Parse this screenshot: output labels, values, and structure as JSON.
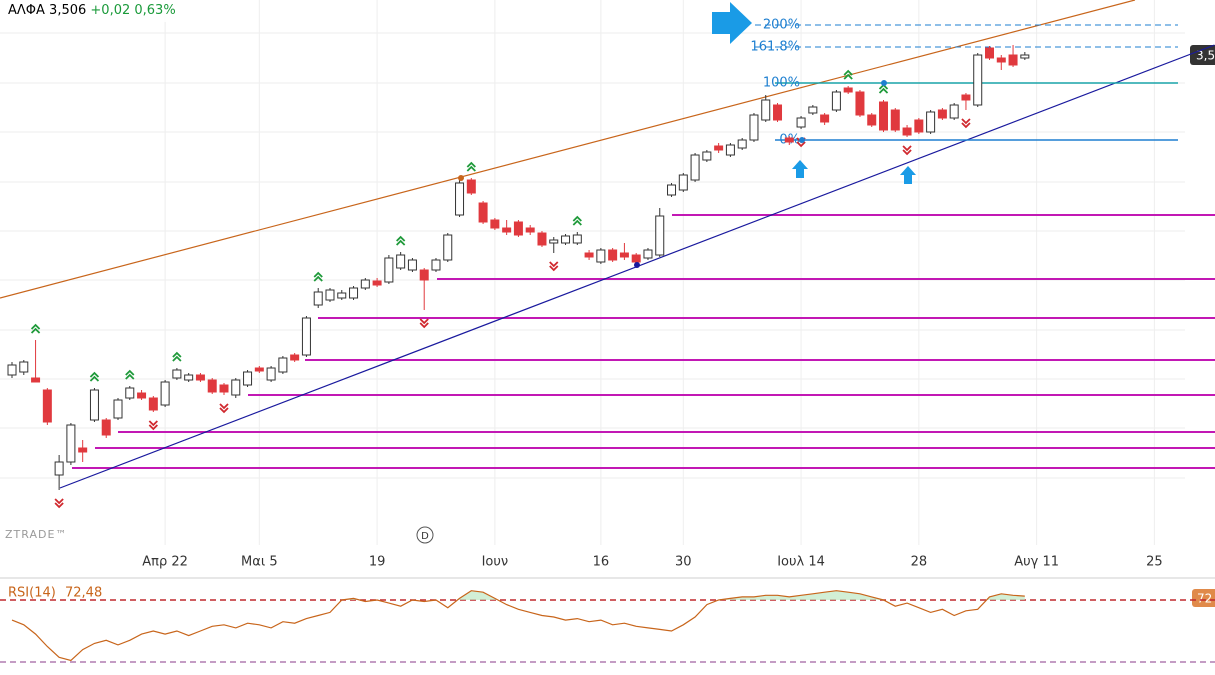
{
  "header": {
    "symbol": "ΑΛΦΑ 3,506",
    "change": "+0,02 0,63%"
  },
  "chart_data": {
    "type": "candlestick",
    "ylim": [
      2.556,
      3.616
    ],
    "xlim": [
      -1.02,
      99.6
    ],
    "up_color": "#ffffff",
    "down_color": "#e0393e",
    "open": [
      2.866,
      2.872,
      2.86,
      2.836,
      2.666,
      2.692,
      2.72,
      2.776,
      2.776,
      2.78,
      2.82,
      2.83,
      2.82,
      2.806,
      2.86,
      2.856,
      2.866,
      2.856,
      2.846,
      2.826,
      2.846,
      2.88,
      2.856,
      2.872,
      2.906,
      2.906,
      3.006,
      3.016,
      3.02,
      3.02,
      3.04,
      3.054,
      3.052,
      3.08,
      3.076,
      3.076,
      3.076,
      3.096,
      3.186,
      3.256,
      3.21,
      3.176,
      3.16,
      3.172,
      3.16,
      3.15,
      3.13,
      3.13,
      3.13,
      3.11,
      3.092,
      3.116,
      3.11,
      3.106,
      3.1,
      3.106,
      3.226,
      3.236,
      3.256,
      3.296,
      3.324,
      3.306,
      3.32,
      3.336,
      3.376,
      3.406,
      3.34,
      3.362,
      3.39,
      3.386,
      3.396,
      3.44,
      3.432,
      3.386,
      3.412,
      3.396,
      3.36,
      3.376,
      3.352,
      3.396,
      3.38,
      3.426,
      3.406,
      3.52,
      3.5,
      3.506,
      3.5
    ],
    "high": [
      2.892,
      2.896,
      2.936,
      2.84,
      2.706,
      2.77,
      2.736,
      2.84,
      2.78,
      2.82,
      2.844,
      2.836,
      2.824,
      2.856,
      2.88,
      2.87,
      2.87,
      2.86,
      2.85,
      2.86,
      2.876,
      2.884,
      2.884,
      2.904,
      2.91,
      2.984,
      3.04,
      3.04,
      3.036,
      3.044,
      3.06,
      3.06,
      3.106,
      3.112,
      3.1,
      3.08,
      3.1,
      3.15,
      3.256,
      3.26,
      3.214,
      3.18,
      3.176,
      3.176,
      3.166,
      3.154,
      3.142,
      3.148,
      3.152,
      3.116,
      3.12,
      3.12,
      3.13,
      3.11,
      3.12,
      3.2,
      3.25,
      3.27,
      3.31,
      3.316,
      3.33,
      3.33,
      3.34,
      3.39,
      3.426,
      3.41,
      3.344,
      3.384,
      3.406,
      3.39,
      3.436,
      3.444,
      3.436,
      3.39,
      3.416,
      3.4,
      3.366,
      3.38,
      3.396,
      3.4,
      3.41,
      3.43,
      3.51,
      3.524,
      3.506,
      3.526,
      3.512
    ],
    "low": [
      2.86,
      2.866,
      2.852,
      2.766,
      2.636,
      2.686,
      2.692,
      2.772,
      2.74,
      2.776,
      2.816,
      2.816,
      2.792,
      2.802,
      2.856,
      2.852,
      2.852,
      2.828,
      2.826,
      2.82,
      2.842,
      2.87,
      2.852,
      2.868,
      2.892,
      2.902,
      3.0,
      3.012,
      3.016,
      3.016,
      3.036,
      3.042,
      3.048,
      3.076,
      3.072,
      2.996,
      3.072,
      3.092,
      3.182,
      3.226,
      3.168,
      3.156,
      3.146,
      3.142,
      3.146,
      3.122,
      3.11,
      3.126,
      3.126,
      3.096,
      3.088,
      3.092,
      3.096,
      3.086,
      3.096,
      3.102,
      3.222,
      3.232,
      3.252,
      3.292,
      3.31,
      3.302,
      3.316,
      3.332,
      3.372,
      3.372,
      3.326,
      3.358,
      3.386,
      3.366,
      3.392,
      3.428,
      3.382,
      3.362,
      3.352,
      3.352,
      3.342,
      3.348,
      3.348,
      3.376,
      3.376,
      3.396,
      3.402,
      3.496,
      3.476,
      3.482,
      3.496
    ],
    "close": [
      2.886,
      2.892,
      2.852,
      2.772,
      2.692,
      2.766,
      2.712,
      2.836,
      2.746,
      2.816,
      2.84,
      2.82,
      2.796,
      2.852,
      2.876,
      2.866,
      2.856,
      2.832,
      2.832,
      2.856,
      2.872,
      2.874,
      2.88,
      2.9,
      2.896,
      2.98,
      3.032,
      3.036,
      3.03,
      3.04,
      3.056,
      3.046,
      3.1,
      3.106,
      3.096,
      3.056,
      3.096,
      3.146,
      3.25,
      3.23,
      3.172,
      3.16,
      3.152,
      3.146,
      3.152,
      3.126,
      3.136,
      3.144,
      3.146,
      3.102,
      3.116,
      3.096,
      3.102,
      3.092,
      3.116,
      3.184,
      3.246,
      3.266,
      3.306,
      3.312,
      3.316,
      3.326,
      3.336,
      3.386,
      3.416,
      3.376,
      3.332,
      3.38,
      3.402,
      3.372,
      3.432,
      3.432,
      3.386,
      3.366,
      3.356,
      3.356,
      3.346,
      3.352,
      3.392,
      3.38,
      3.406,
      3.416,
      3.506,
      3.5,
      3.492,
      3.486,
      3.506
    ],
    "xticks": [
      {
        "value": 13,
        "label": "Απρ 22"
      },
      {
        "value": 21,
        "label": "Μαι 5"
      },
      {
        "value": 31,
        "label": "19"
      },
      {
        "value": 41,
        "label": "Ιουν"
      },
      {
        "value": 50,
        "label": "16"
      },
      {
        "value": 57,
        "label": "30"
      },
      {
        "value": 67,
        "label": "Ιουλ 14"
      },
      {
        "value": 77,
        "label": "28"
      },
      {
        "value": 87,
        "label": "Αυγ 11"
      },
      {
        "value": 97,
        "label": "25"
      }
    ],
    "last_price_label": "3,5",
    "fib_levels": [
      {
        "label": "200%",
        "price": 3.566,
        "dashed": true
      },
      {
        "label": "161.8%",
        "price": 3.522,
        "dashed": true
      },
      {
        "label": "100%",
        "price": 3.45,
        "dashed": false
      },
      {
        "label": "0%",
        "price": 3.336,
        "dashed": false
      }
    ],
    "support_levels": [
      3.186,
      3.058,
      2.98,
      2.896,
      2.826,
      2.752,
      2.72,
      2.68
    ],
    "support_color": "#c218b4",
    "trendlines": [
      {
        "color": "#c8651b",
        "points": [
          [
            -1.02,
            3.02
          ],
          [
            95.35,
            3.616
          ]
        ]
      },
      {
        "color": "#1a1a9e",
        "points": [
          [
            4.07,
            2.64
          ],
          [
            102.1,
            3.526
          ]
        ]
      }
    ],
    "signals": {
      "highs": [
        2,
        7,
        10,
        14,
        26,
        33,
        39,
        48,
        71,
        74
      ],
      "lows": [
        4,
        12,
        18,
        35,
        46,
        67,
        76,
        81
      ]
    },
    "watermark": "ZTRADE™",
    "interval": "D"
  },
  "rsi": {
    "type": "line",
    "name": "RSI(14)",
    "value_label": "72,48",
    "tag": "72",
    "color": "#c8651b",
    "ylim": [
      21.6,
      82.9
    ],
    "levels": [
      70,
      30
    ],
    "values": [
      57,
      54,
      48,
      40,
      33,
      31,
      38,
      42,
      44,
      41,
      44,
      48,
      50,
      48,
      50,
      47,
      50,
      53,
      54,
      52,
      55,
      54,
      52,
      56,
      55,
      58,
      60,
      62,
      70,
      71,
      69,
      70,
      68,
      66,
      70,
      69,
      70,
      65,
      71,
      76,
      75,
      71,
      67,
      64,
      62,
      60,
      59,
      57,
      58,
      56,
      57,
      54,
      55,
      53,
      52,
      51,
      50,
      54,
      59,
      67,
      70,
      71,
      72,
      72,
      73,
      73,
      72,
      73,
      74,
      75,
      76,
      75,
      74,
      72,
      70,
      66,
      68,
      65,
      62,
      64,
      60,
      63,
      64,
      72,
      74,
      73,
      72.48
    ]
  }
}
